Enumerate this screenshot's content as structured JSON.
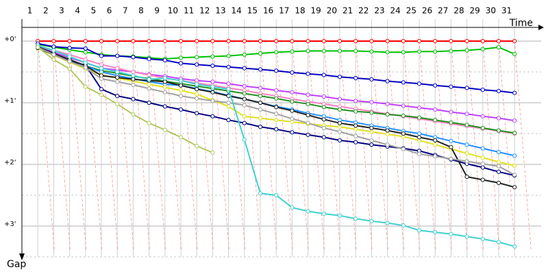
{
  "chart_data": {
    "type": "line",
    "xlabel": "Time",
    "ylabel": "Gap",
    "categories": [
      "1",
      "2",
      "3",
      "4",
      "5",
      "6",
      "7",
      "8",
      "9",
      "10",
      "11",
      "12",
      "13",
      "14",
      "15",
      "16",
      "17",
      "18",
      "19",
      "20",
      "21",
      "22",
      "23",
      "24",
      "25",
      "26",
      "27",
      "28",
      "29",
      "30",
      "31"
    ],
    "ylim": [
      -0.25,
      3.5
    ],
    "yticks": [
      {
        "value": 0,
        "label": "+0'"
      },
      {
        "value": 1,
        "label": "+1'"
      },
      {
        "value": 2,
        "label": "+2'"
      },
      {
        "value": 3,
        "label": "+3'"
      }
    ],
    "grid": true,
    "series": [
      {
        "color": "#ff0000",
        "values": [
          0,
          0,
          0,
          0,
          0,
          0,
          0,
          0,
          0,
          0,
          0,
          0,
          0,
          0,
          0,
          0,
          0,
          0,
          0,
          0,
          0,
          0,
          0,
          0,
          0,
          0,
          0,
          0,
          0,
          0,
          0
        ]
      },
      {
        "color": "#00c000",
        "values": [
          0.05,
          0.1,
          0.14,
          0.18,
          0.22,
          0.24,
          0.25,
          0.27,
          0.29,
          0.27,
          0.26,
          0.25,
          0.24,
          0.22,
          0.2,
          0.18,
          0.17,
          0.16,
          0.16,
          0.16,
          0.16,
          0.17,
          0.18,
          0.18,
          0.17,
          0.17,
          0.16,
          0.15,
          0.13,
          0.1,
          0.21
        ]
      },
      {
        "color": "#0000c0",
        "values": [
          0.04,
          0.09,
          0.11,
          0.12,
          0.24,
          0.24,
          0.26,
          0.29,
          0.31,
          0.36,
          0.38,
          0.4,
          0.42,
          0.44,
          0.46,
          0.48,
          0.51,
          0.53,
          0.55,
          0.58,
          0.6,
          0.62,
          0.65,
          0.67,
          0.69,
          0.72,
          0.74,
          0.76,
          0.79,
          0.81,
          0.84
        ]
      },
      {
        "color": "#c040ff",
        "values": [
          0.09,
          0.18,
          0.27,
          0.35,
          0.44,
          0.47,
          0.5,
          0.54,
          0.57,
          0.61,
          0.64,
          0.66,
          0.69,
          0.73,
          0.76,
          0.8,
          0.83,
          0.87,
          0.9,
          0.94,
          0.97,
          0.99,
          1.02,
          1.05,
          1.08,
          1.11,
          1.15,
          1.18,
          1.22,
          1.25,
          1.29
        ]
      },
      {
        "color": "#ff80c0",
        "values": [
          0.08,
          0.15,
          0.22,
          0.3,
          0.38,
          0.44,
          0.5,
          0.55,
          0.6,
          0.64,
          0.68,
          0.72,
          0.76,
          0.8,
          0.85,
          0.89,
          0.94,
          0.98,
          1.02,
          1.06,
          1.1,
          1.14,
          1.18,
          1.22,
          1.26,
          1.3,
          1.34,
          1.38,
          1.42,
          1.46,
          1.5
        ]
      },
      {
        "color": "#209020",
        "values": [
          0.1,
          0.2,
          0.3,
          0.4,
          0.48,
          0.52,
          0.57,
          0.61,
          0.65,
          0.69,
          0.73,
          0.77,
          0.81,
          0.85,
          0.89,
          0.93,
          0.98,
          1.02,
          1.07,
          1.11,
          1.14,
          1.16,
          1.19,
          1.21,
          1.24,
          1.28,
          1.32,
          1.36,
          1.41,
          1.45,
          1.49
        ]
      },
      {
        "color": "#1e90ff",
        "values": [
          0.11,
          0.2,
          0.3,
          0.4,
          0.5,
          0.56,
          0.61,
          0.66,
          0.7,
          0.72,
          0.77,
          0.82,
          0.88,
          0.94,
          1.0,
          1.06,
          1.11,
          1.17,
          1.22,
          1.28,
          1.32,
          1.37,
          1.41,
          1.46,
          1.5,
          1.56,
          1.62,
          1.68,
          1.74,
          1.8,
          1.86
        ]
      },
      {
        "color": "#e0e020",
        "values": [
          0.12,
          0.23,
          0.34,
          0.45,
          0.55,
          0.6,
          0.65,
          0.7,
          0.75,
          0.8,
          0.86,
          0.96,
          1.06,
          1.22,
          1.25,
          1.28,
          1.31,
          1.34,
          1.37,
          1.39,
          1.43,
          1.47,
          1.51,
          1.55,
          1.61,
          1.68,
          1.75,
          1.82,
          1.89,
          1.96,
          2.02
        ]
      },
      {
        "color": "#000080",
        "values": [
          0.11,
          0.22,
          0.32,
          0.39,
          0.78,
          0.89,
          0.94,
          1.0,
          1.06,
          1.11,
          1.17,
          1.22,
          1.28,
          1.33,
          1.39,
          1.43,
          1.48,
          1.52,
          1.56,
          1.61,
          1.64,
          1.68,
          1.71,
          1.74,
          1.78,
          1.85,
          1.92,
          1.99,
          2.05,
          2.12,
          2.18
        ]
      },
      {
        "color": "#202020",
        "values": [
          0.09,
          0.2,
          0.3,
          0.4,
          0.56,
          0.59,
          0.62,
          0.64,
          0.66,
          0.72,
          0.78,
          0.83,
          0.89,
          0.94,
          1.0,
          1.07,
          1.13,
          1.2,
          1.27,
          1.33,
          1.37,
          1.41,
          1.45,
          1.5,
          1.56,
          1.61,
          1.72,
          2.2,
          2.25,
          2.3,
          2.37
        ]
      },
      {
        "color": "#a0a0a0",
        "values": [
          0.1,
          0.22,
          0.33,
          0.43,
          0.61,
          0.66,
          0.71,
          0.77,
          0.83,
          0.89,
          0.93,
          0.97,
          1.0,
          1.04,
          1.11,
          1.18,
          1.26,
          1.33,
          1.41,
          1.47,
          1.54,
          1.61,
          1.68,
          1.75,
          1.83,
          1.87,
          1.91,
          1.95,
          1.99,
          2.03,
          2.17
        ]
      },
      {
        "color": "#40d0d0",
        "values": [
          0.07,
          0.15,
          0.25,
          0.35,
          0.44,
          0.5,
          0.56,
          0.62,
          0.6,
          0.64,
          0.7,
          0.74,
          0.78,
          1.6,
          2.47,
          2.5,
          2.7,
          2.76,
          2.8,
          2.83,
          2.88,
          2.92,
          2.95,
          2.99,
          3.07,
          3.1,
          3.13,
          3.17,
          3.21,
          3.26,
          3.33
        ]
      },
      {
        "color": "#b0c860",
        "values": [
          0.1,
          0.3,
          0.45,
          0.74,
          0.87,
          1.02,
          1.19,
          1.33,
          1.44,
          1.56,
          1.7,
          1.81,
          null,
          null,
          null,
          null,
          null,
          null,
          null,
          null,
          null,
          null,
          null,
          null,
          null,
          null,
          null,
          null,
          null,
          null,
          null
        ]
      }
    ]
  }
}
